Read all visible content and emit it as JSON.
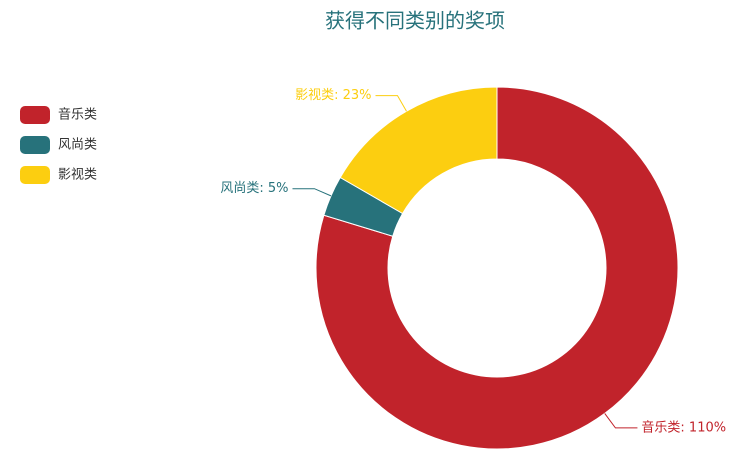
{
  "chart_data": {
    "type": "pie",
    "title": "获得不同类别的奖项",
    "categories": [
      "音乐类",
      "风尚类",
      "影视类"
    ],
    "values": [
      110,
      5,
      23
    ],
    "value_labels": [
      "音乐类: 110%",
      "风尚类: 5%",
      "影视类: 23%"
    ],
    "colors": [
      "#c1232b",
      "#27727b",
      "#fcce10"
    ],
    "title_color": "#27727b",
    "legend": "left"
  }
}
